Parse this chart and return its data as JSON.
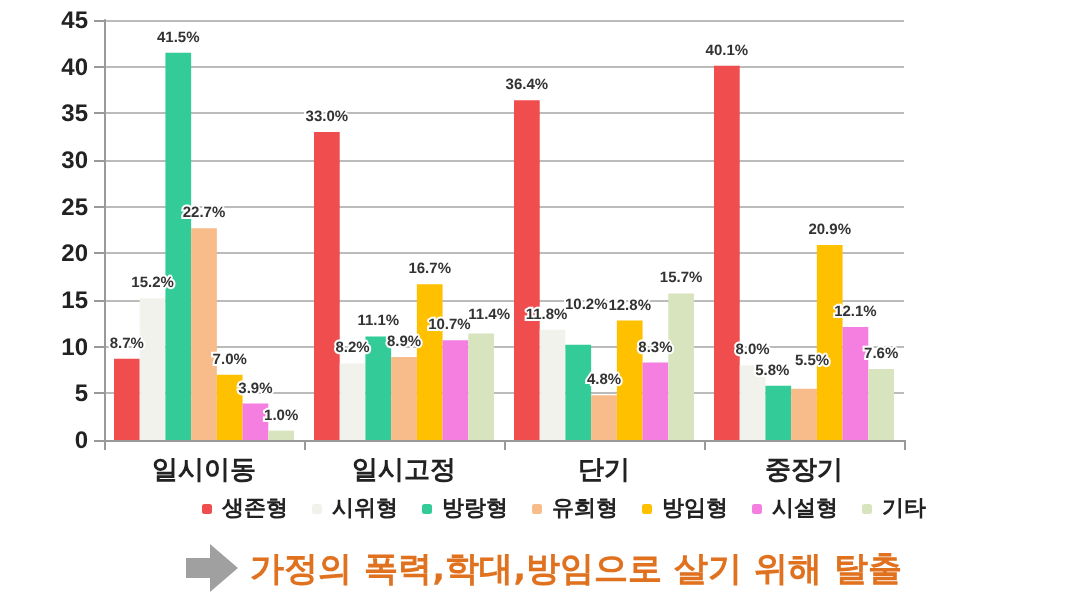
{
  "chart_data": {
    "type": "bar",
    "categories": [
      "일시이동",
      "일시고정",
      "단기",
      "중장기"
    ],
    "series": [
      {
        "name": "생존형",
        "color": "#f04e4e",
        "values": [
          8.7,
          33.0,
          36.4,
          40.1
        ],
        "value_labels": [
          "8.7%",
          "33.0%",
          "36.4%",
          "40.1%"
        ]
      },
      {
        "name": "시위형",
        "color": "#f2f2ec",
        "values": [
          15.2,
          8.2,
          11.8,
          8.0
        ],
        "value_labels": [
          "15.2%",
          "8.2%",
          "11.8%",
          "8.0%"
        ]
      },
      {
        "name": "방랑형",
        "color": "#33cc99",
        "values": [
          41.5,
          11.1,
          10.2,
          5.8
        ],
        "value_labels": [
          "41.5%",
          "11.1%",
          "10.2%",
          "5.8%"
        ]
      },
      {
        "name": "유희형",
        "color": "#f8bb8a",
        "values": [
          22.7,
          8.9,
          4.8,
          5.5
        ],
        "value_labels": [
          "22.7%",
          "8.9%",
          "4.8%",
          "5.5%"
        ]
      },
      {
        "name": "방임형",
        "color": "#ffc000",
        "values": [
          7.0,
          16.7,
          12.8,
          20.9
        ],
        "value_labels": [
          "7.0%",
          "16.7%",
          "12.8%",
          "20.9%"
        ]
      },
      {
        "name": "시설형",
        "color": "#f47fe0",
        "values": [
          3.9,
          10.7,
          8.3,
          12.1
        ],
        "value_labels": [
          "3.9%",
          "10.7%",
          "8.3%",
          "12.1%"
        ]
      },
      {
        "name": "기타",
        "color": "#d7e4bd",
        "values": [
          1.0,
          11.4,
          15.7,
          7.6
        ],
        "value_labels": [
          "1.0%",
          "11.4%",
          "15.7%",
          "7.6%"
        ]
      }
    ],
    "ylim": [
      0,
      45
    ],
    "yticks": [
      0,
      5,
      10,
      15,
      20,
      25,
      30,
      35,
      40,
      45
    ],
    "grid": "y",
    "legend": "bottom",
    "annotations": [
      "가정의 폭력,학대,방임으로 살기 위해 탈출"
    ]
  }
}
